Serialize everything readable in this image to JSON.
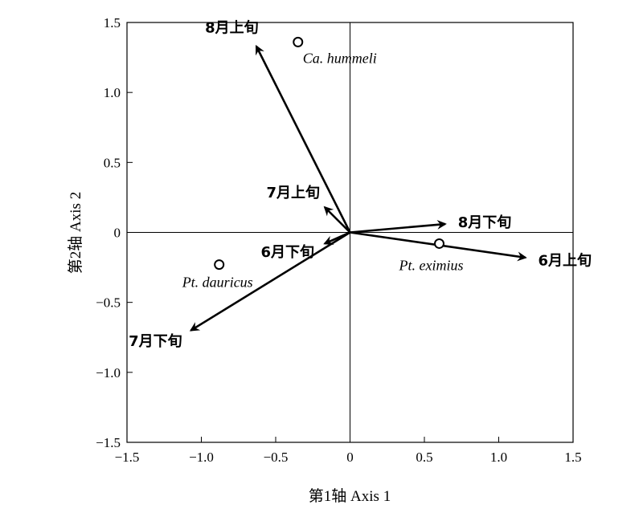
{
  "chart_data": {
    "type": "scatter",
    "subtype": "ordination-biplot",
    "xlabel": "第1轴 Axis 1",
    "ylabel": "第2轴 Axis 2",
    "xlim": [
      -1.5,
      1.5
    ],
    "ylim": [
      -1.5,
      1.5
    ],
    "x_ticks": [
      {
        "value": -1.5,
        "label": "−1.5"
      },
      {
        "value": -1.0,
        "label": "−1.0"
      },
      {
        "value": -0.5,
        "label": "−0.5"
      },
      {
        "value": 0,
        "label": "0"
      },
      {
        "value": 0.5,
        "label": "0.5"
      },
      {
        "value": 1.0,
        "label": "1.0"
      },
      {
        "value": 1.5,
        "label": "1.5"
      }
    ],
    "y_ticks": [
      {
        "value": 1.5,
        "label": "1.5"
      },
      {
        "value": 1.0,
        "label": "1.0"
      },
      {
        "value": 0.5,
        "label": "0.5"
      },
      {
        "value": 0,
        "label": "0"
      },
      {
        "value": -0.5,
        "label": "−0.5"
      },
      {
        "value": -1.0,
        "label": "−1.0"
      },
      {
        "value": -1.5,
        "label": "−1.5"
      }
    ],
    "grid": false,
    "zero_lines": true,
    "vectors": [
      {
        "label": "8月上旬",
        "x": -0.63,
        "y": 1.33
      },
      {
        "label": "7月上旬",
        "x": -0.17,
        "y": 0.18
      },
      {
        "label": "6月下旬",
        "x": -0.17,
        "y": -0.08
      },
      {
        "label": "7月下旬",
        "x": -1.07,
        "y": -0.7
      },
      {
        "label": "8月下旬",
        "x": 0.64,
        "y": 0.06
      },
      {
        "label": "6月上旬",
        "x": 1.18,
        "y": -0.18
      }
    ],
    "points": [
      {
        "label": "Ca. hummeli",
        "x": -0.35,
        "y": 1.36
      },
      {
        "label": "Pt. dauricus",
        "x": -0.88,
        "y": -0.23
      },
      {
        "label": "Pt. eximius",
        "x": 0.6,
        "y": -0.08
      }
    ]
  }
}
